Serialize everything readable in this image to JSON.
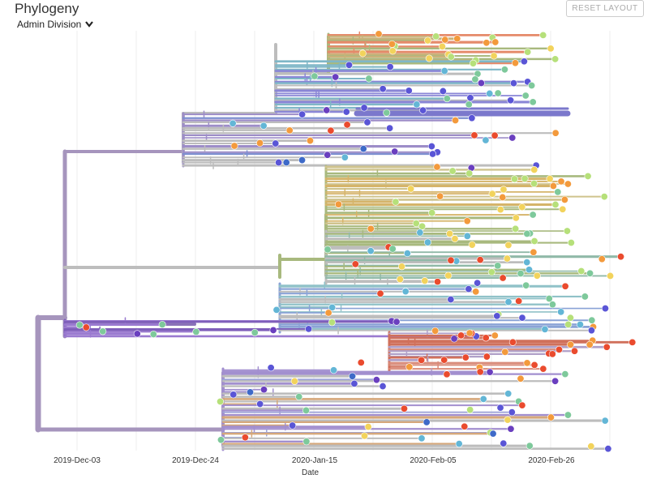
{
  "header": {
    "title": "Phylogeny",
    "color_by_label": "Admin Division",
    "reset_label": "RESET LAYOUT"
  },
  "axis": {
    "label": "Date",
    "ticks": [
      "2019-Dec-03",
      "2019-Dec-24",
      "2020-Jan-15",
      "2020-Feb-05",
      "2020-Feb-26"
    ]
  },
  "icons": {
    "dropdown": "chevron-down-icon"
  },
  "colors": {
    "branch_root": "#a695bd",
    "branch_grey": "#bdbdbd",
    "branch_olive": "#a8b97e",
    "tips": [
      "#5a55d6",
      "#6a3fbf",
      "#63b6d6",
      "#7ec99b",
      "#b6e07a",
      "#f2d35c",
      "#f39a3c",
      "#ea4b2e",
      "#3e6ac8"
    ]
  }
}
